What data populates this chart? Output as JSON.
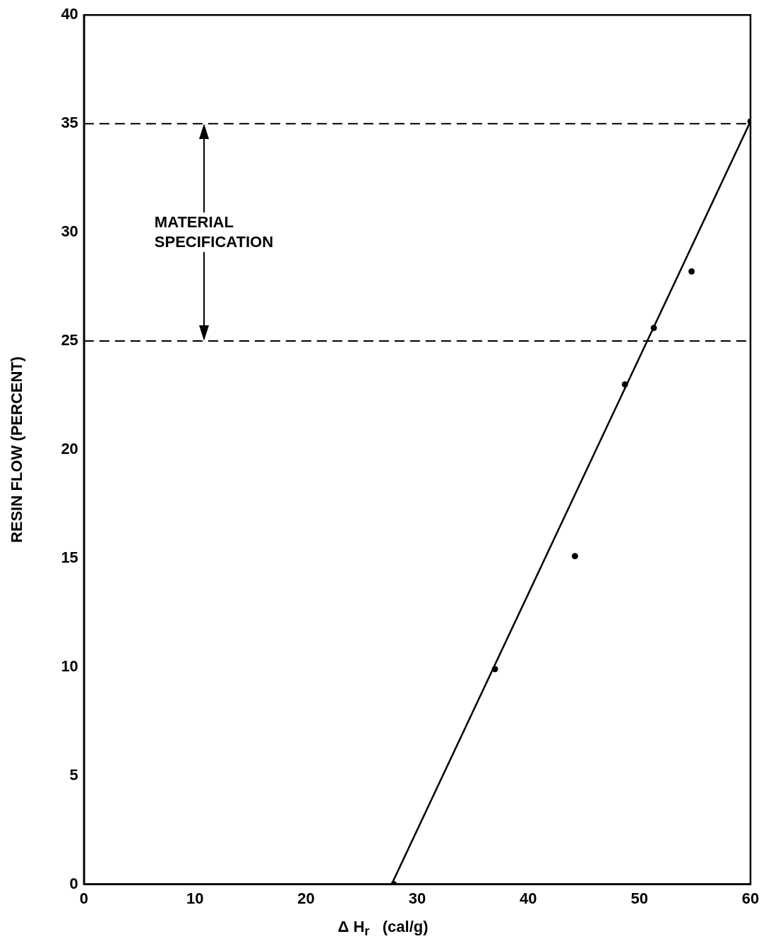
{
  "chart_data": {
    "type": "scatter",
    "xlabel": "Δ H$_{r}$   (cal/g)",
    "ylabel": "RESIN FLOW (PERCENT)",
    "xlim": [
      0,
      60
    ],
    "ylim": [
      0,
      40
    ],
    "xticks": [
      0,
      10,
      20,
      30,
      40,
      50,
      60
    ],
    "yticks": [
      0,
      5,
      10,
      15,
      20,
      25,
      30,
      35,
      40
    ],
    "grid": false,
    "marker": "circle",
    "series": [
      {
        "color": "#000000",
        "x": [
          27.9,
          37.0,
          44.2,
          48.7,
          51.3,
          54.7,
          60.0
        ],
        "values": [
          0.0,
          9.9,
          15.1,
          23.0,
          25.6,
          28.2,
          35.1
        ]
      },
      {
        "type": "line",
        "color": "#000000",
        "marker": "none",
        "x": [
          27.7,
          60.0
        ],
        "values": [
          0.0,
          35.1
        ]
      }
    ],
    "ref_lines": [
      {
        "axis": "y",
        "value": 25,
        "line_style": "dashed",
        "color": "#000000"
      },
      {
        "axis": "y",
        "value": 35,
        "line_style": "dashed",
        "color": "#000000"
      }
    ],
    "annotations": [
      "MATERIAL SPECIFICATION"
    ]
  }
}
